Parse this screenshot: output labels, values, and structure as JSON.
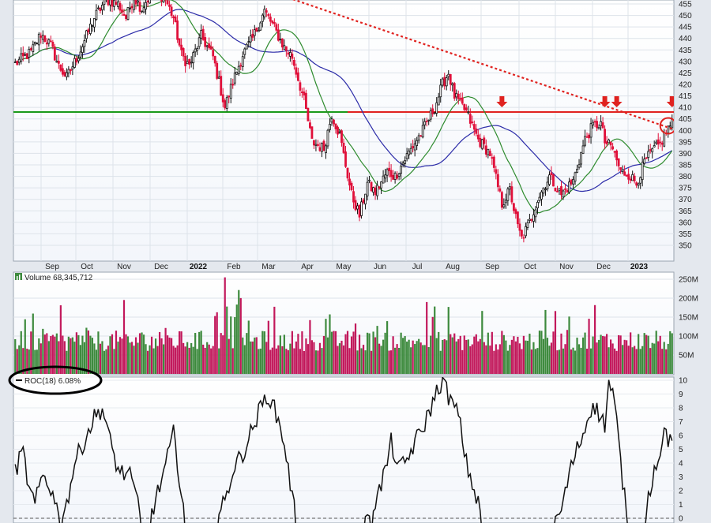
{
  "chart_data": [
    {
      "type": "candlestick",
      "panel": "price",
      "ylim": [
        345,
        460
      ],
      "y_ticks": [
        "455",
        "450",
        "445",
        "440",
        "435",
        "430",
        "425",
        "420",
        "415",
        "410",
        "405",
        "400",
        "395",
        "390",
        "385",
        "380",
        "375",
        "370",
        "365",
        "360",
        "355",
        "350"
      ],
      "x_tick_labels": [
        {
          "label": "Sep",
          "bold": false
        },
        {
          "label": "Oct",
          "bold": false
        },
        {
          "label": "Nov",
          "bold": false
        },
        {
          "label": "Dec",
          "bold": false
        },
        {
          "label": "2022",
          "bold": true
        },
        {
          "label": "Feb",
          "bold": false
        },
        {
          "label": "Mar",
          "bold": false
        },
        {
          "label": "Apr",
          "bold": false
        },
        {
          "label": "May",
          "bold": false
        },
        {
          "label": "Jun",
          "bold": false
        },
        {
          "label": "Jul",
          "bold": false
        },
        {
          "label": "Aug",
          "bold": false
        },
        {
          "label": "Sep",
          "bold": false
        },
        {
          "label": "Oct",
          "bold": false
        },
        {
          "label": "Nov",
          "bold": false
        },
        {
          "label": "Dec",
          "bold": false
        },
        {
          "label": "2023",
          "bold": true
        }
      ],
      "close_anchors": [
        [
          0,
          429
        ],
        [
          8,
          434
        ],
        [
          13,
          442
        ],
        [
          18,
          437
        ],
        [
          22,
          428
        ],
        [
          26,
          423
        ],
        [
          32,
          433
        ],
        [
          40,
          449
        ],
        [
          46,
          457
        ],
        [
          52,
          455
        ],
        [
          56,
          449
        ],
        [
          60,
          458
        ],
        [
          64,
          453
        ],
        [
          70,
          462
        ],
        [
          76,
          457
        ],
        [
          80,
          449
        ],
        [
          84,
          433
        ],
        [
          88,
          428
        ],
        [
          94,
          441
        ],
        [
          100,
          432
        ],
        [
          106,
          410
        ],
        [
          110,
          421
        ],
        [
          115,
          433
        ],
        [
          120,
          440
        ],
        [
          126,
          452
        ],
        [
          130,
          446
        ],
        [
          136,
          436
        ],
        [
          140,
          432
        ],
        [
          146,
          413
        ],
        [
          150,
          395
        ],
        [
          156,
          392
        ],
        [
          160,
          407
        ],
        [
          164,
          398
        ],
        [
          170,
          372
        ],
        [
          174,
          363
        ],
        [
          178,
          377
        ],
        [
          182,
          373
        ],
        [
          188,
          382
        ],
        [
          192,
          380
        ],
        [
          198,
          389
        ],
        [
          206,
          400
        ],
        [
          212,
          410
        ],
        [
          216,
          420
        ],
        [
          219,
          425
        ],
        [
          222,
          415
        ],
        [
          228,
          408
        ],
        [
          234,
          396
        ],
        [
          240,
          390
        ],
        [
          246,
          368
        ],
        [
          250,
          374
        ],
        [
          254,
          358
        ],
        [
          256,
          353
        ],
        [
          260,
          360
        ],
        [
          264,
          370
        ],
        [
          270,
          380
        ],
        [
          276,
          372
        ],
        [
          282,
          378
        ],
        [
          288,
          396
        ],
        [
          292,
          402
        ],
        [
          296,
          403
        ],
        [
          298,
          395
        ],
        [
          302,
          392
        ],
        [
          306,
          382
        ],
        [
          310,
          381
        ],
        [
          314,
          377
        ],
        [
          318,
          386
        ],
        [
          322,
          391
        ],
        [
          326,
          394
        ],
        [
          330,
          401
        ],
        [
          332,
          403
        ]
      ],
      "ma_fast_label": "",
      "ma_slow_label": "",
      "resistance_level": 408,
      "support_level": 408,
      "trendline": {
        "from": [
          120,
          463
        ],
        "to": [
          332,
          400
        ]
      },
      "signal_markers": [
        [
          246,
          408
        ],
        [
          298,
          408
        ],
        [
          304,
          408
        ],
        [
          332,
          408
        ]
      ],
      "colors": {
        "up": "#111111",
        "down": "#e0103a",
        "ma_fast": "#2e8b2e",
        "ma_slow": "#2b2ba8",
        "resistance": "#e0221f",
        "support": "#1a9a1a",
        "trendline": "#e0221f",
        "marker": "#e0221f"
      }
    },
    {
      "type": "bar",
      "panel": "volume",
      "title": "Volume 68,345,712",
      "y_ticks": [
        "250M",
        "200M",
        "150M",
        "100M",
        "50M"
      ],
      "ylim": [
        0,
        260
      ],
      "units": "M",
      "colors": {
        "up": "#3d8a3d",
        "down": "#c2185b"
      }
    },
    {
      "type": "line",
      "panel": "indicator",
      "title": "ROC(18) 6.08%",
      "ylim": [
        0,
        10
      ],
      "y_ticks": [
        "10",
        "9",
        "8",
        "7",
        "6",
        "5",
        "4",
        "3",
        "2",
        "1",
        "0"
      ],
      "anchors": [
        [
          0,
          3.5
        ],
        [
          4,
          4.8
        ],
        [
          7,
          2.0
        ],
        [
          10,
          1.0
        ],
        [
          14,
          3.2
        ],
        [
          18,
          2.2
        ],
        [
          22,
          0.2
        ],
        [
          26,
          1.0
        ],
        [
          30,
          4.0
        ],
        [
          36,
          6.0
        ],
        [
          40,
          7.3
        ],
        [
          44,
          8.0
        ],
        [
          48,
          5.5
        ],
        [
          52,
          3.5
        ],
        [
          58,
          3.0
        ],
        [
          62,
          1.2
        ],
        [
          64,
          0.0
        ],
        [
          68,
          0.0
        ],
        [
          72,
          1.8
        ],
        [
          76,
          3.8
        ],
        [
          80,
          6.1
        ],
        [
          84,
          2.0
        ],
        [
          86,
          0.0
        ],
        [
          92,
          0.0
        ],
        [
          98,
          0.0
        ],
        [
          102,
          0.0
        ],
        [
          106,
          1.2
        ],
        [
          110,
          3.5
        ],
        [
          116,
          5.0
        ],
        [
          120,
          6.5
        ],
        [
          124,
          8.0
        ],
        [
          128,
          9.0
        ],
        [
          132,
          7.5
        ],
        [
          136,
          5.5
        ],
        [
          140,
          1.5
        ],
        [
          142,
          0.0
        ],
        [
          160,
          0.0
        ],
        [
          176,
          0.0
        ],
        [
          180,
          0.5
        ],
        [
          184,
          2.0
        ],
        [
          188,
          4.0
        ],
        [
          190,
          5.5
        ],
        [
          194,
          3.5
        ],
        [
          198,
          4.2
        ],
        [
          202,
          5.5
        ],
        [
          206,
          6.5
        ],
        [
          210,
          8.0
        ],
        [
          214,
          9.5
        ],
        [
          216,
          10.0
        ],
        [
          220,
          8.5
        ],
        [
          224,
          7.5
        ],
        [
          228,
          4.0
        ],
        [
          232,
          2.0
        ],
        [
          236,
          0.0
        ],
        [
          250,
          0.0
        ],
        [
          272,
          0.0
        ],
        [
          276,
          0.5
        ],
        [
          280,
          3.2
        ],
        [
          284,
          5.0
        ],
        [
          288,
          6.5
        ],
        [
          292,
          8.5
        ],
        [
          294,
          7.8
        ],
        [
          298,
          6.8
        ],
        [
          300,
          9.8
        ],
        [
          302,
          9.0
        ],
        [
          304,
          7.0
        ],
        [
          306,
          4.0
        ],
        [
          308,
          1.5
        ],
        [
          310,
          0.0
        ],
        [
          318,
          0.0
        ],
        [
          320,
          1.5
        ],
        [
          322,
          3.0
        ],
        [
          325,
          4.5
        ],
        [
          328,
          6.3
        ],
        [
          330,
          5.8
        ],
        [
          332,
          6.1
        ]
      ],
      "color": "#111111"
    }
  ]
}
